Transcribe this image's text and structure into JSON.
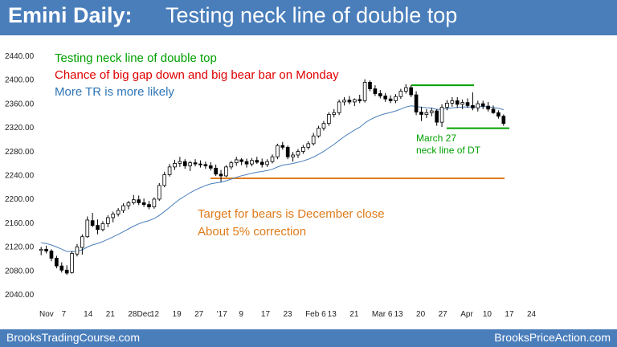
{
  "header": {
    "title_bold": "Emini Daily:",
    "title_rest": "Testing neck line of double top"
  },
  "footer": {
    "left": "BrooksTradingCourse.com",
    "right": "BrooksPriceAction.com"
  },
  "colors": {
    "bar": "#4a7ebb",
    "green": "#00a000",
    "red": "#e00000",
    "blue": "#2e75b6",
    "orange": "#e07b1a",
    "ma": "#4a7ebb"
  },
  "annotations": {
    "line1": "Testing neck line of double top",
    "line2": "Chance of big gap down and big bear bar on Monday",
    "line3": "More TR is more likely",
    "target1": "Target for bears is December close",
    "target2": "About 5% correction",
    "neck1": "March 27",
    "neck2": "neck line of DT"
  },
  "chart_data": {
    "type": "candlestick",
    "ylim": [
      2030,
      2450
    ],
    "yticks": [
      2040,
      2080,
      2120,
      2160,
      2200,
      2240,
      2280,
      2320,
      2360,
      2400,
      2440
    ],
    "xtick_labels": [
      "Nov",
      "7",
      "14",
      "21",
      "28Dec",
      "12",
      "19",
      "27",
      "'17",
      "9",
      "17",
      "23",
      "Feb 6",
      "13",
      "21",
      "Mar 6",
      "13",
      "20",
      "27",
      "Apr",
      "10",
      "17",
      "24"
    ],
    "support_levels": [
      {
        "value": 2234,
        "color": "orange"
      },
      {
        "value": 2318,
        "color": "green"
      },
      {
        "value": 2390,
        "color": "green"
      }
    ],
    "bars": [
      {
        "o": 2113,
        "h": 2119,
        "l": 2105,
        "c": 2115
      },
      {
        "o": 2115,
        "h": 2121,
        "l": 2108,
        "c": 2112
      },
      {
        "o": 2112,
        "h": 2115,
        "l": 2095,
        "c": 2100
      },
      {
        "o": 2100,
        "h": 2104,
        "l": 2083,
        "c": 2087
      },
      {
        "o": 2087,
        "h": 2093,
        "l": 2076,
        "c": 2080
      },
      {
        "o": 2080,
        "h": 2088,
        "l": 2072,
        "c": 2075
      },
      {
        "o": 2076,
        "h": 2112,
        "l": 2074,
        "c": 2108
      },
      {
        "o": 2107,
        "h": 2124,
        "l": 2103,
        "c": 2119
      },
      {
        "o": 2118,
        "h": 2140,
        "l": 2106,
        "c": 2136
      },
      {
        "o": 2136,
        "h": 2170,
        "l": 2134,
        "c": 2164
      },
      {
        "o": 2163,
        "h": 2176,
        "l": 2152,
        "c": 2155
      },
      {
        "o": 2155,
        "h": 2165,
        "l": 2140,
        "c": 2148
      },
      {
        "o": 2148,
        "h": 2162,
        "l": 2145,
        "c": 2158
      },
      {
        "o": 2158,
        "h": 2172,
        "l": 2152,
        "c": 2168
      },
      {
        "o": 2168,
        "h": 2178,
        "l": 2160,
        "c": 2174
      },
      {
        "o": 2174,
        "h": 2184,
        "l": 2170,
        "c": 2180
      },
      {
        "o": 2180,
        "h": 2192,
        "l": 2176,
        "c": 2188
      },
      {
        "o": 2188,
        "h": 2196,
        "l": 2182,
        "c": 2193
      },
      {
        "o": 2193,
        "h": 2206,
        "l": 2190,
        "c": 2198
      },
      {
        "o": 2198,
        "h": 2205,
        "l": 2189,
        "c": 2193
      },
      {
        "o": 2193,
        "h": 2200,
        "l": 2186,
        "c": 2190
      },
      {
        "o": 2190,
        "h": 2196,
        "l": 2182,
        "c": 2186
      },
      {
        "o": 2186,
        "h": 2202,
        "l": 2183,
        "c": 2199
      },
      {
        "o": 2199,
        "h": 2226,
        "l": 2196,
        "c": 2222
      },
      {
        "o": 2222,
        "h": 2245,
        "l": 2219,
        "c": 2240
      },
      {
        "o": 2240,
        "h": 2258,
        "l": 2237,
        "c": 2253
      },
      {
        "o": 2253,
        "h": 2265,
        "l": 2248,
        "c": 2259
      },
      {
        "o": 2259,
        "h": 2270,
        "l": 2253,
        "c": 2262
      },
      {
        "o": 2262,
        "h": 2266,
        "l": 2250,
        "c": 2255
      },
      {
        "o": 2255,
        "h": 2263,
        "l": 2246,
        "c": 2260
      },
      {
        "o": 2260,
        "h": 2266,
        "l": 2254,
        "c": 2258
      },
      {
        "o": 2258,
        "h": 2264,
        "l": 2252,
        "c": 2257
      },
      {
        "o": 2257,
        "h": 2262,
        "l": 2250,
        "c": 2255
      },
      {
        "o": 2255,
        "h": 2261,
        "l": 2247,
        "c": 2251
      },
      {
        "o": 2251,
        "h": 2257,
        "l": 2238,
        "c": 2241
      },
      {
        "o": 2241,
        "h": 2248,
        "l": 2228,
        "c": 2238
      },
      {
        "o": 2238,
        "h": 2256,
        "l": 2236,
        "c": 2253
      },
      {
        "o": 2253,
        "h": 2263,
        "l": 2249,
        "c": 2260
      },
      {
        "o": 2260,
        "h": 2270,
        "l": 2255,
        "c": 2265
      },
      {
        "o": 2265,
        "h": 2268,
        "l": 2256,
        "c": 2262
      },
      {
        "o": 2262,
        "h": 2267,
        "l": 2252,
        "c": 2258
      },
      {
        "o": 2258,
        "h": 2268,
        "l": 2254,
        "c": 2264
      },
      {
        "o": 2264,
        "h": 2270,
        "l": 2258,
        "c": 2261
      },
      {
        "o": 2261,
        "h": 2267,
        "l": 2252,
        "c": 2257
      },
      {
        "o": 2257,
        "h": 2266,
        "l": 2253,
        "c": 2262
      },
      {
        "o": 2262,
        "h": 2274,
        "l": 2259,
        "c": 2270
      },
      {
        "o": 2270,
        "h": 2292,
        "l": 2266,
        "c": 2289
      },
      {
        "o": 2289,
        "h": 2295,
        "l": 2282,
        "c": 2286
      },
      {
        "o": 2286,
        "h": 2289,
        "l": 2266,
        "c": 2270
      },
      {
        "o": 2270,
        "h": 2278,
        "l": 2262,
        "c": 2273
      },
      {
        "o": 2273,
        "h": 2283,
        "l": 2268,
        "c": 2279
      },
      {
        "o": 2279,
        "h": 2290,
        "l": 2275,
        "c": 2286
      },
      {
        "o": 2286,
        "h": 2296,
        "l": 2282,
        "c": 2292
      },
      {
        "o": 2292,
        "h": 2310,
        "l": 2289,
        "c": 2305
      },
      {
        "o": 2305,
        "h": 2322,
        "l": 2302,
        "c": 2318
      },
      {
        "o": 2318,
        "h": 2330,
        "l": 2314,
        "c": 2326
      },
      {
        "o": 2326,
        "h": 2345,
        "l": 2322,
        "c": 2341
      },
      {
        "o": 2341,
        "h": 2350,
        "l": 2336,
        "c": 2344
      },
      {
        "o": 2344,
        "h": 2366,
        "l": 2340,
        "c": 2362
      },
      {
        "o": 2362,
        "h": 2370,
        "l": 2356,
        "c": 2365
      },
      {
        "o": 2365,
        "h": 2372,
        "l": 2358,
        "c": 2362
      },
      {
        "o": 2362,
        "h": 2368,
        "l": 2355,
        "c": 2366
      },
      {
        "o": 2366,
        "h": 2374,
        "l": 2360,
        "c": 2364
      },
      {
        "o": 2364,
        "h": 2400,
        "l": 2361,
        "c": 2395
      },
      {
        "o": 2395,
        "h": 2398,
        "l": 2380,
        "c": 2384
      },
      {
        "o": 2384,
        "h": 2390,
        "l": 2372,
        "c": 2376
      },
      {
        "o": 2376,
        "h": 2382,
        "l": 2368,
        "c": 2372
      },
      {
        "o": 2372,
        "h": 2377,
        "l": 2362,
        "c": 2367
      },
      {
        "o": 2367,
        "h": 2373,
        "l": 2360,
        "c": 2364
      },
      {
        "o": 2364,
        "h": 2375,
        "l": 2360,
        "c": 2371
      },
      {
        "o": 2371,
        "h": 2384,
        "l": 2367,
        "c": 2380
      },
      {
        "o": 2380,
        "h": 2392,
        "l": 2376,
        "c": 2386
      },
      {
        "o": 2386,
        "h": 2390,
        "l": 2370,
        "c": 2374
      },
      {
        "o": 2374,
        "h": 2380,
        "l": 2340,
        "c": 2345
      },
      {
        "o": 2345,
        "h": 2354,
        "l": 2330,
        "c": 2341
      },
      {
        "o": 2341,
        "h": 2350,
        "l": 2335,
        "c": 2344
      },
      {
        "o": 2344,
        "h": 2352,
        "l": 2338,
        "c": 2347
      },
      {
        "o": 2347,
        "h": 2350,
        "l": 2322,
        "c": 2328
      },
      {
        "o": 2328,
        "h": 2358,
        "l": 2320,
        "c": 2353
      },
      {
        "o": 2353,
        "h": 2365,
        "l": 2348,
        "c": 2360
      },
      {
        "o": 2360,
        "h": 2370,
        "l": 2354,
        "c": 2364
      },
      {
        "o": 2364,
        "h": 2370,
        "l": 2352,
        "c": 2358
      },
      {
        "o": 2358,
        "h": 2366,
        "l": 2350,
        "c": 2361
      },
      {
        "o": 2361,
        "h": 2368,
        "l": 2352,
        "c": 2356
      },
      {
        "o": 2356,
        "h": 2378,
        "l": 2348,
        "c": 2352
      },
      {
        "o": 2352,
        "h": 2364,
        "l": 2346,
        "c": 2359
      },
      {
        "o": 2359,
        "h": 2364,
        "l": 2350,
        "c": 2355
      },
      {
        "o": 2355,
        "h": 2362,
        "l": 2346,
        "c": 2350
      },
      {
        "o": 2350,
        "h": 2356,
        "l": 2342,
        "c": 2344
      },
      {
        "o": 2344,
        "h": 2348,
        "l": 2334,
        "c": 2338
      },
      {
        "o": 2338,
        "h": 2341,
        "l": 2322,
        "c": 2326
      }
    ]
  }
}
